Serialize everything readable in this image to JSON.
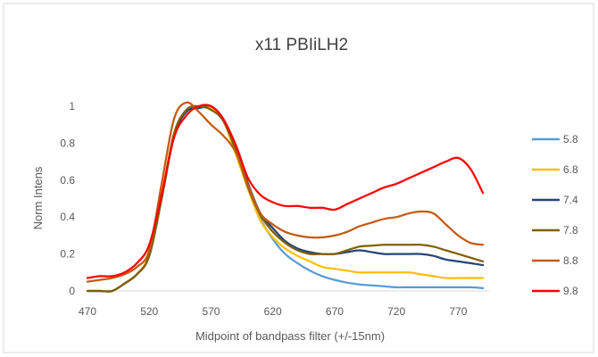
{
  "chart_data": {
    "type": "line",
    "title": "x11 PBIiLH2",
    "xlabel": "Midpoint of bandpass filter (+/-15nm)",
    "ylabel": "Norm Intens",
    "xlim": [
      470,
      795
    ],
    "ylim": [
      0,
      1.2
    ],
    "x_ticks": [
      470,
      520,
      570,
      620,
      670,
      720,
      770
    ],
    "y_ticks": [
      0,
      0.2,
      0.4,
      0.6,
      0.8,
      1
    ],
    "y_tick_labels": [
      "0",
      "0.2",
      "0.4",
      "0.6",
      "0.8",
      "1"
    ],
    "grid": false,
    "legend_position": "right",
    "x": [
      470,
      480,
      490,
      500,
      510,
      520,
      530,
      540,
      550,
      560,
      570,
      580,
      590,
      600,
      610,
      620,
      630,
      640,
      650,
      660,
      670,
      680,
      690,
      700,
      710,
      720,
      730,
      740,
      750,
      760,
      770,
      780,
      790
    ],
    "series": [
      {
        "name": "5.8",
        "color": "#5b9bd5",
        "values": [
          0.0,
          0.0,
          0.0,
          0.04,
          0.09,
          0.19,
          0.5,
          0.83,
          0.98,
          0.99,
          0.99,
          0.92,
          0.76,
          0.56,
          0.39,
          0.28,
          0.2,
          0.15,
          0.11,
          0.08,
          0.06,
          0.045,
          0.035,
          0.03,
          0.025,
          0.02,
          0.02,
          0.02,
          0.02,
          0.02,
          0.02,
          0.02,
          0.015
        ]
      },
      {
        "name": "6.8",
        "color": "#ffc000",
        "values": [
          0.0,
          0.0,
          0.0,
          0.04,
          0.09,
          0.2,
          0.52,
          0.85,
          0.98,
          1.0,
          0.99,
          0.92,
          0.74,
          0.55,
          0.38,
          0.29,
          0.23,
          0.19,
          0.16,
          0.13,
          0.12,
          0.11,
          0.1,
          0.1,
          0.1,
          0.1,
          0.1,
          0.09,
          0.08,
          0.07,
          0.07,
          0.07,
          0.07
        ]
      },
      {
        "name": "7.4",
        "color": "#264478",
        "values": [
          0.0,
          0.0,
          0.0,
          0.04,
          0.09,
          0.19,
          0.5,
          0.84,
          0.97,
          0.99,
          1.0,
          0.93,
          0.78,
          0.58,
          0.42,
          0.34,
          0.27,
          0.23,
          0.21,
          0.2,
          0.2,
          0.21,
          0.22,
          0.21,
          0.2,
          0.2,
          0.2,
          0.2,
          0.19,
          0.17,
          0.16,
          0.15,
          0.14
        ]
      },
      {
        "name": "7.8",
        "color": "#7f6000",
        "values": [
          0.0,
          0.0,
          0.0,
          0.04,
          0.09,
          0.19,
          0.5,
          0.85,
          0.98,
          1.0,
          0.98,
          0.92,
          0.76,
          0.56,
          0.41,
          0.32,
          0.26,
          0.22,
          0.2,
          0.2,
          0.2,
          0.22,
          0.24,
          0.245,
          0.25,
          0.25,
          0.25,
          0.25,
          0.24,
          0.22,
          0.2,
          0.18,
          0.16
        ]
      },
      {
        "name": "8.8",
        "color": "#c55a11",
        "values": [
          0.05,
          0.06,
          0.07,
          0.09,
          0.13,
          0.22,
          0.58,
          0.93,
          1.02,
          0.97,
          0.9,
          0.84,
          0.75,
          0.57,
          0.42,
          0.36,
          0.32,
          0.3,
          0.29,
          0.29,
          0.3,
          0.32,
          0.35,
          0.37,
          0.39,
          0.4,
          0.42,
          0.43,
          0.42,
          0.36,
          0.3,
          0.26,
          0.25
        ]
      },
      {
        "name": "9.8",
        "color": "#ff0000",
        "values": [
          0.07,
          0.08,
          0.08,
          0.1,
          0.15,
          0.25,
          0.52,
          0.83,
          0.95,
          1.0,
          1.0,
          0.93,
          0.79,
          0.61,
          0.52,
          0.48,
          0.46,
          0.46,
          0.45,
          0.45,
          0.44,
          0.47,
          0.5,
          0.53,
          0.56,
          0.58,
          0.61,
          0.64,
          0.67,
          0.7,
          0.72,
          0.66,
          0.53
        ]
      }
    ]
  }
}
